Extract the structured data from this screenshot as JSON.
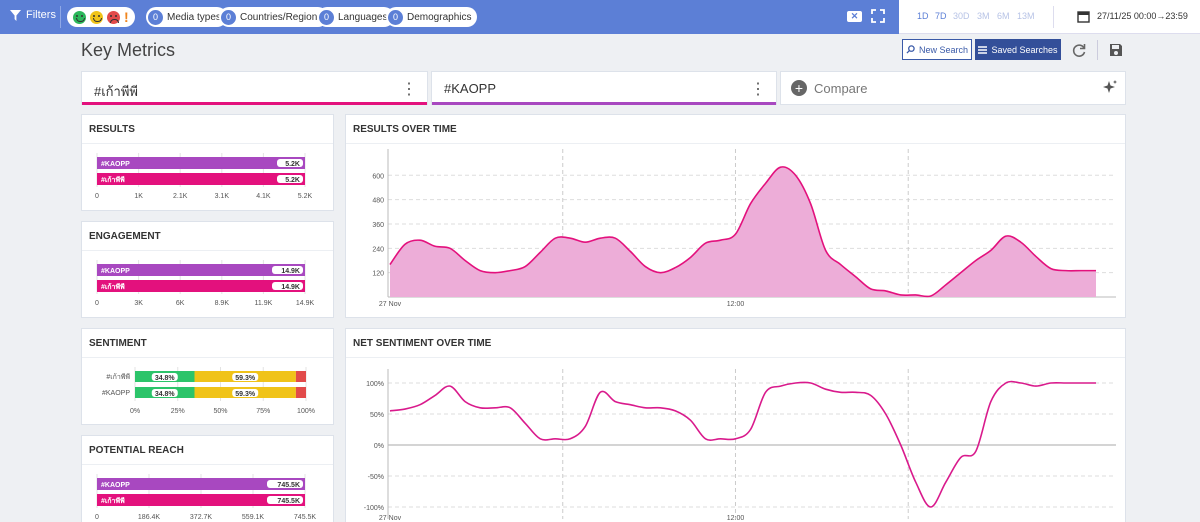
{
  "toolbar": {
    "filters_label": "Filters",
    "pills": [
      {
        "count": "0",
        "label": "Media types"
      },
      {
        "count": "0",
        "label": "Countries/Regions"
      },
      {
        "count": "0",
        "label": "Languages"
      },
      {
        "count": "0",
        "label": "Demographics"
      }
    ],
    "sentiment_icons": [
      "happy-face-icon",
      "neutral-face-icon",
      "sad-face-icon",
      "exclamation-icon"
    ],
    "clear_label": "✕",
    "ranges": [
      "1D",
      "7D",
      "30D",
      "3M",
      "6M",
      "13M"
    ],
    "date_range": "27/11/25 00:00→23:59"
  },
  "header": {
    "title": "Key Metrics",
    "new_search": "New Search",
    "saved_searches": "Saved Searches"
  },
  "queries": [
    {
      "label": "#เก้าพีพี",
      "color": "#e3117d"
    },
    {
      "label": "#KAOPP",
      "color": "#a848c0"
    }
  ],
  "compare_label": "Compare",
  "cards": {
    "results": "RESULTS",
    "engagement": "ENGAGEMENT",
    "sentiment": "SENTIMENT",
    "reach": "POTENTIAL REACH",
    "results_over_time": "RESULTS OVER TIME",
    "net_sentiment": "NET SENTIMENT OVER TIME"
  },
  "chart_data": [
    {
      "type": "bar",
      "id": "results",
      "title": "RESULTS",
      "categories": [
        "#KAOPP",
        "#เก้าพีพี"
      ],
      "values": [
        5200,
        5200
      ],
      "value_labels": [
        "5.2K",
        "5.2K"
      ],
      "colors": [
        "#a848c0",
        "#e3117d"
      ],
      "ticks": [
        "0",
        "1K",
        "2.1K",
        "3.1K",
        "4.1K",
        "5.2K"
      ],
      "xlim": [
        0,
        5200
      ]
    },
    {
      "type": "bar",
      "id": "engagement",
      "title": "ENGAGEMENT",
      "categories": [
        "#KAOPP",
        "#เก้าพีพี"
      ],
      "values": [
        14900,
        14900
      ],
      "value_labels": [
        "14.9K",
        "14.9K"
      ],
      "colors": [
        "#a848c0",
        "#e3117d"
      ],
      "ticks": [
        "0",
        "3K",
        "6K",
        "8.9K",
        "11.9K",
        "14.9K"
      ],
      "xlim": [
        0,
        14900
      ]
    },
    {
      "type": "bar",
      "id": "sentiment",
      "title": "SENTIMENT",
      "stacked": true,
      "categories": [
        "#เก้าพีพี",
        "#KAOPP"
      ],
      "series": [
        {
          "name": "positive",
          "color": "#2cc46a",
          "values": [
            34.8,
            34.8
          ],
          "labels": [
            "34.8%",
            "34.8%"
          ]
        },
        {
          "name": "neutral",
          "color": "#f0c319",
          "values": [
            59.3,
            59.3
          ],
          "labels": [
            "59.3%",
            "59.3%"
          ]
        },
        {
          "name": "negative",
          "color": "#e24a4a",
          "values": [
            5.9,
            5.9
          ],
          "labels": [
            "",
            ""
          ]
        }
      ],
      "ticks": [
        "0%",
        "25%",
        "50%",
        "75%",
        "100%"
      ],
      "xlim": [
        0,
        100
      ]
    },
    {
      "type": "bar",
      "id": "reach",
      "title": "POTENTIAL REACH",
      "categories": [
        "#KAOPP",
        "#เก้าพีพี"
      ],
      "values": [
        745500,
        745500
      ],
      "value_labels": [
        "745.5K",
        "745.5K"
      ],
      "colors": [
        "#a848c0",
        "#e3117d"
      ],
      "ticks": [
        "0",
        "186.4K",
        "372.7K",
        "559.1K",
        "745.5K"
      ],
      "xlim": [
        0,
        745500
      ]
    },
    {
      "type": "area",
      "id": "results_over_time",
      "title": "RESULTS OVER TIME",
      "color": "#e3117d",
      "fill": "#edadd8",
      "x": [
        0,
        1,
        2,
        3,
        4,
        5,
        6,
        7,
        8,
        9,
        10,
        11,
        12,
        13,
        14,
        15,
        16,
        17,
        18,
        19,
        20,
        21,
        22,
        23,
        24,
        25,
        26,
        27,
        28,
        29,
        30,
        31,
        32,
        33,
        34,
        35,
        36,
        37,
        38,
        39,
        40,
        41,
        42,
        43,
        44,
        45,
        46,
        47
      ],
      "y": [
        160,
        260,
        280,
        250,
        240,
        180,
        130,
        120,
        130,
        150,
        220,
        290,
        290,
        270,
        290,
        290,
        225,
        150,
        120,
        145,
        195,
        265,
        280,
        310,
        460,
        560,
        640,
        600,
        460,
        230,
        160,
        100,
        40,
        30,
        10,
        10,
        5,
        60,
        120,
        180,
        230,
        300,
        270,
        200,
        140,
        130,
        130,
        130
      ],
      "ylim": [
        0,
        700
      ],
      "yticks": [
        "120",
        "240",
        "360",
        "480",
        "600"
      ],
      "xtick_labels": [
        "27 Nov",
        "12:00"
      ]
    },
    {
      "type": "line",
      "id": "net_sentiment",
      "title": "NET SENTIMENT OVER TIME",
      "color": "#d91a8c",
      "x": [
        0,
        1,
        2,
        3,
        4,
        5,
        6,
        7,
        8,
        9,
        10,
        11,
        12,
        13,
        14,
        15,
        16,
        17,
        18,
        19,
        20,
        21,
        22,
        23,
        24,
        25,
        26,
        27,
        28,
        29,
        30,
        31,
        32,
        33,
        34,
        35,
        36,
        37,
        38,
        39,
        40,
        41,
        42,
        43,
        44,
        45,
        46,
        47
      ],
      "y": [
        55,
        58,
        65,
        80,
        95,
        70,
        60,
        60,
        60,
        35,
        10,
        10,
        10,
        30,
        85,
        70,
        65,
        60,
        60,
        55,
        40,
        10,
        10,
        10,
        25,
        85,
        95,
        100,
        100,
        90,
        85,
        85,
        80,
        50,
        0,
        -60,
        -100,
        -60,
        -20,
        -10,
        70,
        100,
        100,
        95,
        100,
        100,
        100,
        100
      ],
      "ylim": [
        -100,
        100
      ],
      "yticks": [
        "100%",
        "50%",
        "0%",
        "-50%",
        "-100%"
      ],
      "xtick_labels": [
        "27 Nov",
        "12:00"
      ]
    }
  ]
}
